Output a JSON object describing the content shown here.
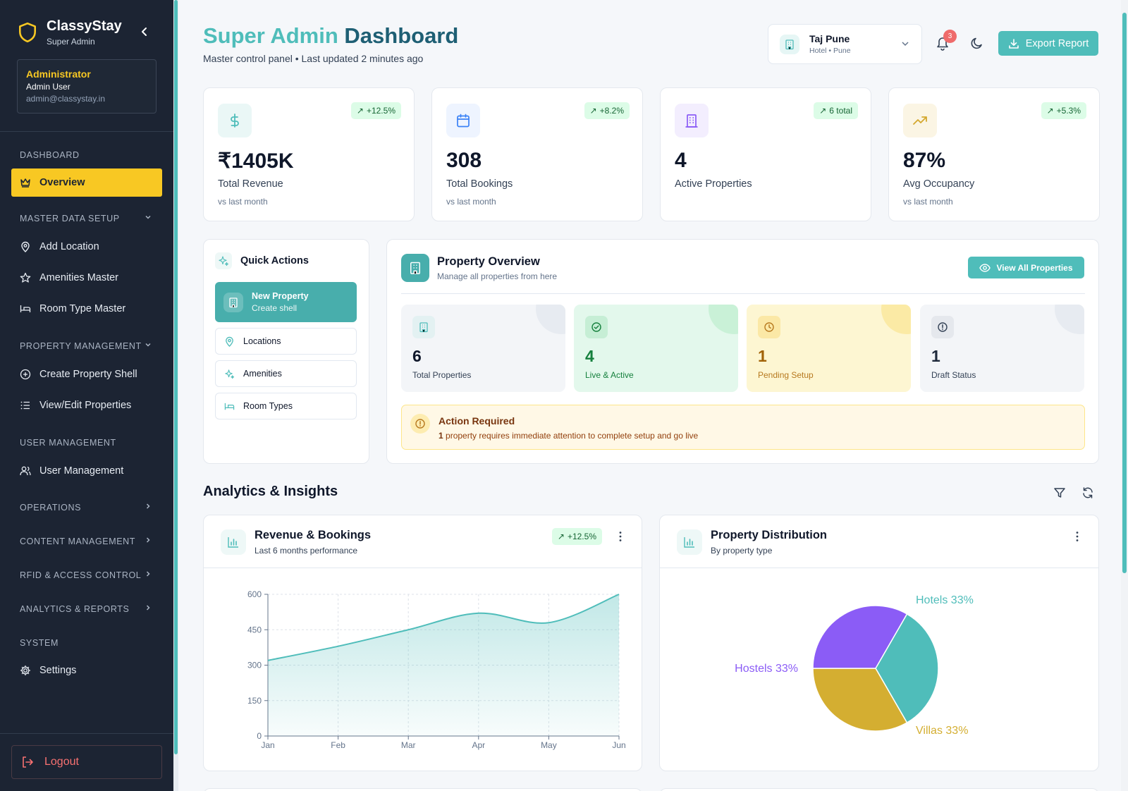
{
  "sidebar": {
    "brand_name": "ClassyStay",
    "brand_role": "Super Admin",
    "admin_title": "Administrator",
    "admin_user": "Admin User",
    "admin_email": "admin@classystay.in",
    "sections": {
      "dashboard": "DASHBOARD",
      "master": "MASTER DATA SETUP",
      "property": "PROPERTY MANAGEMENT",
      "user": "USER MANAGEMENT",
      "operations": "OPERATIONS",
      "content": "CONTENT MANAGEMENT",
      "rfid": "RFID & ACCESS CONTROL",
      "analytics": "ANALYTICS & REPORTS",
      "system": "SYSTEM"
    },
    "items": {
      "overview": "Overview",
      "add_location": "Add Location",
      "amenities_master": "Amenities Master",
      "room_type_master": "Room Type Master",
      "create_property_shell": "Create Property Shell",
      "view_edit_properties": "View/Edit Properties",
      "user_management": "User Management",
      "settings": "Settings"
    },
    "logout": "Logout"
  },
  "header": {
    "title_part1": "Super Admin",
    "title_part2": "Dashboard",
    "subtitle": "Master control panel • Last updated 2 minutes ago",
    "property_name": "Taj Pune",
    "property_sub": "Hotel • Pune",
    "notification_count": "3",
    "export_label": "Export Report"
  },
  "kpis": [
    {
      "value": "₹1405K",
      "label": "Total Revenue",
      "sub": "vs last month",
      "trend": "+12.5%",
      "color": "#4fbdba"
    },
    {
      "value": "308",
      "label": "Total Bookings",
      "sub": "vs last month",
      "trend": "+8.2%",
      "color": "#3b82f6"
    },
    {
      "value": "4",
      "label": "Active Properties",
      "sub": "",
      "trend": "6 total",
      "color": "#8b5cf6"
    },
    {
      "value": "87%",
      "label": "Avg Occupancy",
      "sub": "vs last month",
      "trend": "+5.3%",
      "color": "#d4a82e"
    }
  ],
  "quick_actions": {
    "title": "Quick Actions",
    "primary_title": "New Property",
    "primary_sub": "Create shell",
    "items": [
      "Locations",
      "Amenities",
      "Room Types"
    ]
  },
  "property_overview": {
    "title": "Property Overview",
    "subtitle": "Manage all properties from here",
    "view_all": "View All Properties",
    "stats": [
      {
        "value": "6",
        "label": "Total Properties"
      },
      {
        "value": "4",
        "label": "Live & Active"
      },
      {
        "value": "1",
        "label": "Pending Setup"
      },
      {
        "value": "1",
        "label": "Draft Status"
      }
    ],
    "alert_title": "Action Required",
    "alert_count": "1",
    "alert_text": "property requires immediate attention to complete setup and go live"
  },
  "analytics": {
    "title": "Analytics & Insights",
    "revenue_title": "Revenue & Bookings",
    "revenue_sub": "Last 6 months performance",
    "revenue_trend": "+12.5%",
    "distribution_title": "Property Distribution",
    "distribution_sub": "By property type"
  },
  "chart_data": [
    {
      "type": "area",
      "x": [
        "Jan",
        "Feb",
        "Mar",
        "Apr",
        "May",
        "Jun"
      ],
      "series": [
        {
          "values": [
            320,
            380,
            450,
            520,
            480,
            600
          ]
        }
      ],
      "yticks": [
        0,
        150,
        300,
        450,
        600
      ],
      "ylim": [
        0,
        600
      ],
      "grid": true,
      "color": "#4fbdba"
    },
    {
      "type": "pie",
      "slices": [
        {
          "label": "Hotels",
          "value": 33,
          "color": "#4fbdba"
        },
        {
          "label": "Villas",
          "value": 33,
          "color": "#d4ae31"
        },
        {
          "label": "Hostels",
          "value": 33,
          "color": "#8b5cf6"
        }
      ],
      "labels": [
        "Hotels 33%",
        "Villas 33%",
        "Hostels 33%"
      ]
    }
  ]
}
